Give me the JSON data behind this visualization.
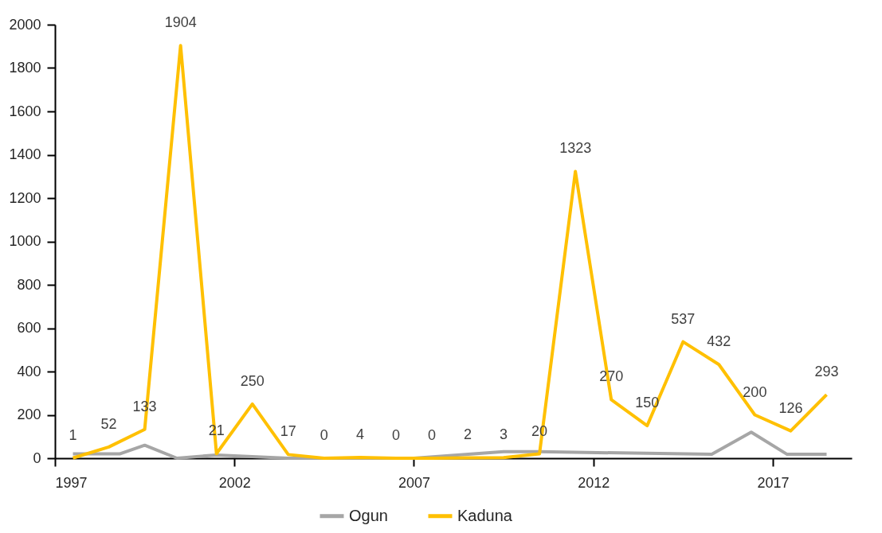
{
  "chart_data": {
    "type": "line",
    "xlim": [
      1997,
      2019.2
    ],
    "xticks": [
      1997,
      2002,
      2007,
      2012,
      2017
    ],
    "ylim": [
      0,
      2000
    ],
    "yticks": [
      0,
      200,
      400,
      600,
      800,
      1000,
      1200,
      1400,
      1600,
      1800,
      2000
    ],
    "grid": false,
    "legend": "bottom",
    "marker": "none",
    "line_style": "solid",
    "series": [
      {
        "name": "Ogun",
        "color": "#a6a6a6",
        "x": [
          1997.5,
          1998.8,
          1999.5,
          2000.4,
          2001.5,
          2003.5,
          2007.0,
          2009.5,
          2010.5,
          2015.3,
          2016.4,
          2017.4,
          2018.5
        ],
        "values": [
          20,
          20,
          60,
          0,
          15,
          0,
          0,
          30,
          30,
          18,
          120,
          18,
          18
        ]
      },
      {
        "name": "Kaduna",
        "color": "#ffc000",
        "x": [
          1997.5,
          1998.5,
          1999.5,
          2000.5,
          2001.5,
          2002.5,
          2003.5,
          2004.5,
          2005.5,
          2006.5,
          2007.5,
          2008.5,
          2009.5,
          2010.5,
          2011.5,
          2012.5,
          2013.5,
          2014.5,
          2015.5,
          2016.5,
          2017.5,
          2018.5
        ],
        "values": [
          1,
          52,
          133,
          1904,
          21,
          250,
          17,
          0,
          4,
          0,
          0,
          2,
          3,
          20,
          1323,
          270,
          150,
          537,
          432,
          200,
          126,
          293
        ],
        "value_labels": [
          "1",
          "52",
          "133",
          "1904",
          "21",
          "250",
          "17",
          "0",
          "4",
          "0",
          "0",
          "2",
          "3",
          "20",
          "1323",
          "270",
          "150",
          "537",
          "432",
          "200",
          "126",
          "293"
        ]
      }
    ]
  }
}
